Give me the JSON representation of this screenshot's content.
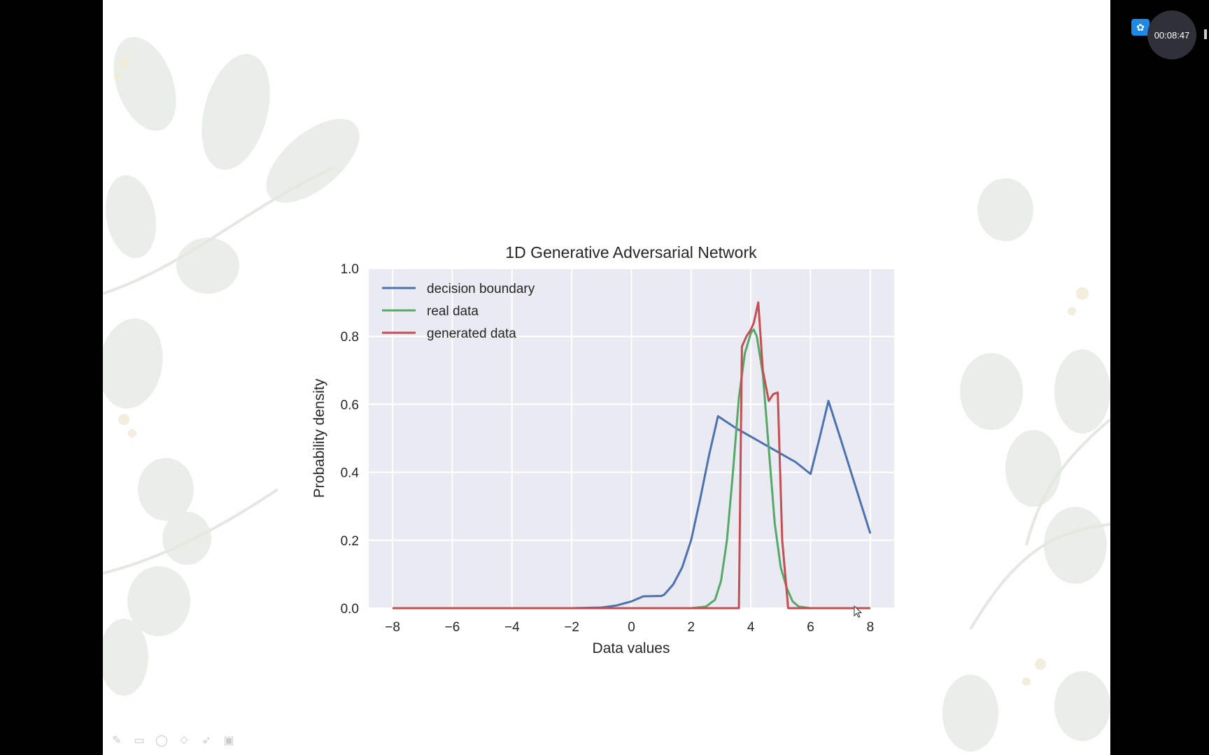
{
  "overlay": {
    "timer": "00:08:47",
    "tools": [
      {
        "icon": "pen-icon",
        "glyph": "✎"
      },
      {
        "icon": "screen-icon",
        "glyph": "▭"
      },
      {
        "icon": "lasso-icon",
        "glyph": "◯"
      },
      {
        "icon": "eraser-icon",
        "glyph": "⬦"
      },
      {
        "icon": "pointer-icon",
        "glyph": "➶"
      },
      {
        "icon": "screen-share-icon",
        "glyph": "▣"
      }
    ]
  },
  "colors": {
    "plot_bg": "#eaeaf2",
    "grid": "#ffffff",
    "decision": "#4c72b0",
    "real": "#55a868",
    "generated": "#c44e52"
  },
  "chart_data": {
    "type": "line",
    "title": "1D Generative Adversarial Network",
    "xlabel": "Data values",
    "ylabel": "Probability density",
    "xlim": [
      -8.8,
      8.8
    ],
    "ylim": [
      0.0,
      1.0
    ],
    "xticks": [
      -8,
      -6,
      -4,
      -2,
      0,
      2,
      4,
      6,
      8
    ],
    "xtick_labels": [
      "−8",
      "−6",
      "−4",
      "−2",
      "0",
      "2",
      "4",
      "6",
      "8"
    ],
    "yticks": [
      0.0,
      0.2,
      0.4,
      0.6,
      0.8,
      1.0
    ],
    "ytick_labels": [
      "0.0",
      "0.2",
      "0.4",
      "0.6",
      "0.8",
      "1.0"
    ],
    "grid": true,
    "legend_position": "upper-left",
    "series": [
      {
        "name": "decision boundary",
        "color_key": "decision",
        "x": [
          -8,
          -2,
          -1,
          -0.5,
          0,
          0.4,
          1.0,
          1.1,
          1.4,
          1.7,
          2.0,
          2.3,
          2.6,
          2.9,
          3.5,
          4.0,
          4.5,
          5.0,
          5.5,
          6.0,
          6.3,
          6.6,
          7.0,
          7.5,
          8.0
        ],
        "y": [
          0.0,
          0.0,
          0.002,
          0.008,
          0.02,
          0.035,
          0.036,
          0.04,
          0.07,
          0.12,
          0.2,
          0.32,
          0.45,
          0.565,
          0.53,
          0.505,
          0.48,
          0.455,
          0.43,
          0.395,
          0.5,
          0.61,
          0.5,
          0.36,
          0.22
        ]
      },
      {
        "name": "real data",
        "color_key": "real",
        "x": [
          -8,
          2.0,
          2.5,
          2.8,
          3.0,
          3.2,
          3.4,
          3.6,
          3.8,
          4.0,
          4.1,
          4.2,
          4.4,
          4.6,
          4.8,
          5.0,
          5.2,
          5.4,
          5.6,
          6.0,
          8.0
        ],
        "y": [
          0.0,
          0.0,
          0.005,
          0.025,
          0.08,
          0.2,
          0.4,
          0.62,
          0.75,
          0.81,
          0.82,
          0.8,
          0.69,
          0.47,
          0.25,
          0.12,
          0.06,
          0.02,
          0.005,
          0.0,
          0.0
        ]
      },
      {
        "name": "generated data",
        "color_key": "generated",
        "x": [
          -8,
          3.5,
          3.6,
          3.7,
          3.85,
          4.0,
          4.1,
          4.25,
          4.4,
          4.6,
          4.75,
          4.9,
          5.05,
          5.25,
          8.0
        ],
        "y": [
          0.0,
          0.0,
          0.0,
          0.77,
          0.8,
          0.82,
          0.84,
          0.9,
          0.7,
          0.61,
          0.63,
          0.635,
          0.2,
          0.0,
          0.0
        ]
      }
    ]
  }
}
